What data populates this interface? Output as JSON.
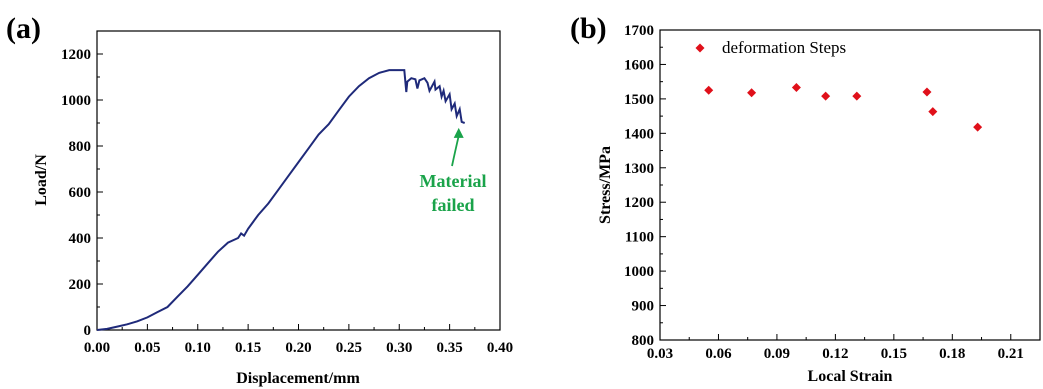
{
  "figure": {
    "panel_a_label": "(a)",
    "panel_b_label": "(b)"
  },
  "chart_data": [
    {
      "type": "line",
      "xlabel": "Displacement/mm",
      "ylabel": "Load/N",
      "xlim": [
        0,
        0.4
      ],
      "ylim": [
        0,
        1300
      ],
      "xticks": [
        "0.00",
        "0.05",
        "0.10",
        "0.15",
        "0.20",
        "0.25",
        "0.30",
        "0.35",
        "0.40"
      ],
      "yticks": [
        "0",
        "200",
        "400",
        "600",
        "800",
        "1000",
        "1200"
      ],
      "line_color": "#1f2a7a",
      "annotation": {
        "line1": "Material",
        "line2": "failed",
        "color": "#1aa34a",
        "points_to": [
          0.363,
          905
        ]
      },
      "series": [
        {
          "x": [
            0.0,
            0.01,
            0.02,
            0.03,
            0.04,
            0.05,
            0.06,
            0.07,
            0.08,
            0.09,
            0.1,
            0.11,
            0.12,
            0.13,
            0.14,
            0.143,
            0.146,
            0.15,
            0.16,
            0.17,
            0.18,
            0.19,
            0.2,
            0.21,
            0.22,
            0.23,
            0.24,
            0.25,
            0.26,
            0.27,
            0.28,
            0.29,
            0.3,
            0.305,
            0.307,
            0.308,
            0.312,
            0.316,
            0.318,
            0.32,
            0.325,
            0.328,
            0.33,
            0.335,
            0.336,
            0.34,
            0.342,
            0.344,
            0.346,
            0.35,
            0.352,
            0.355,
            0.357,
            0.36,
            0.362,
            0.365
          ],
          "y": [
            0,
            5,
            15,
            25,
            38,
            55,
            78,
            100,
            145,
            190,
            240,
            290,
            340,
            380,
            400,
            420,
            410,
            440,
            500,
            550,
            610,
            670,
            730,
            790,
            850,
            895,
            955,
            1015,
            1060,
            1095,
            1118,
            1130,
            1130,
            1130,
            1035,
            1080,
            1095,
            1090,
            1050,
            1085,
            1095,
            1075,
            1040,
            1080,
            1045,
            1060,
            1015,
            1040,
            995,
            1025,
            960,
            985,
            930,
            960,
            905,
            900
          ]
        }
      ]
    },
    {
      "type": "scatter",
      "xlabel": "Local Strain",
      "ylabel": "Stress/MPa",
      "xlim": [
        0.03,
        0.225
      ],
      "ylim": [
        800,
        1700
      ],
      "xticks": [
        "0.03",
        "0.06",
        "0.09",
        "0.12",
        "0.15",
        "0.18",
        "0.21"
      ],
      "yticks": [
        "800",
        "900",
        "1000",
        "1100",
        "1200",
        "1300",
        "1400",
        "1500",
        "1600",
        "1700"
      ],
      "legend": {
        "label": "deformation Steps",
        "position": "top-left"
      },
      "marker_color": "#e0101a",
      "series": [
        {
          "name": "deformation Steps",
          "x": [
            0.055,
            0.077,
            0.1,
            0.115,
            0.131,
            0.167,
            0.17,
            0.193
          ],
          "y": [
            1525,
            1518,
            1533,
            1508,
            1508,
            1520,
            1463,
            1418
          ]
        }
      ]
    }
  ]
}
